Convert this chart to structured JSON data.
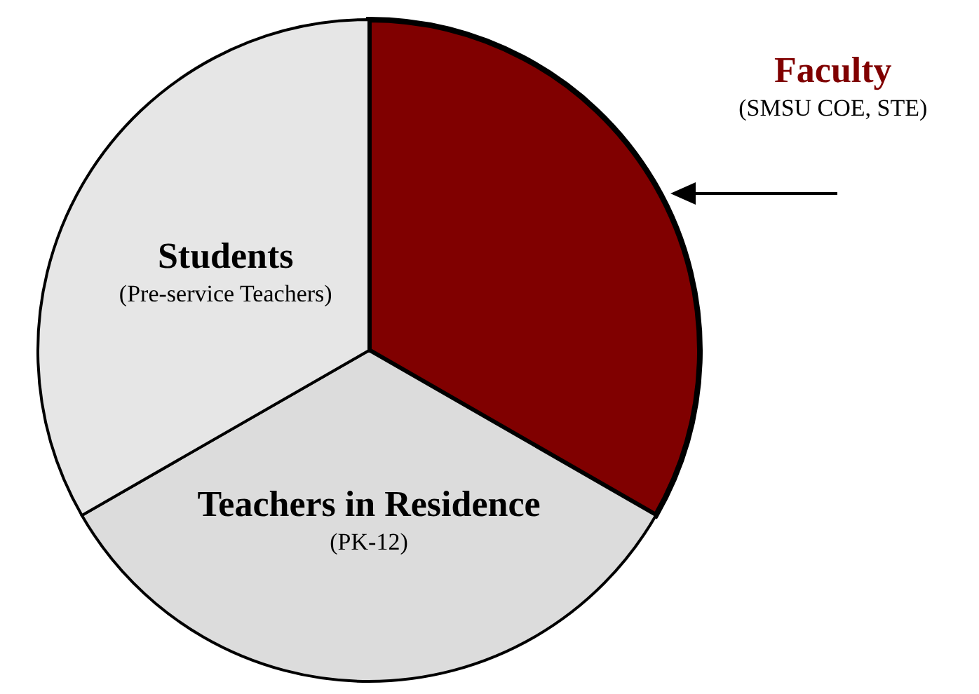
{
  "chart_data": {
    "type": "pie",
    "categories": [
      "Faculty",
      "Teachers in Residence",
      "Students"
    ],
    "values": [
      33.3,
      33.4,
      33.3
    ],
    "colors": [
      "#800000",
      "#dcdcdc",
      "#e6e6e6"
    ],
    "annotations": [
      "(SMSU COE, STE)",
      "(PK-12)",
      "(Pre-service Teachers)"
    ],
    "legend": false
  }
}
